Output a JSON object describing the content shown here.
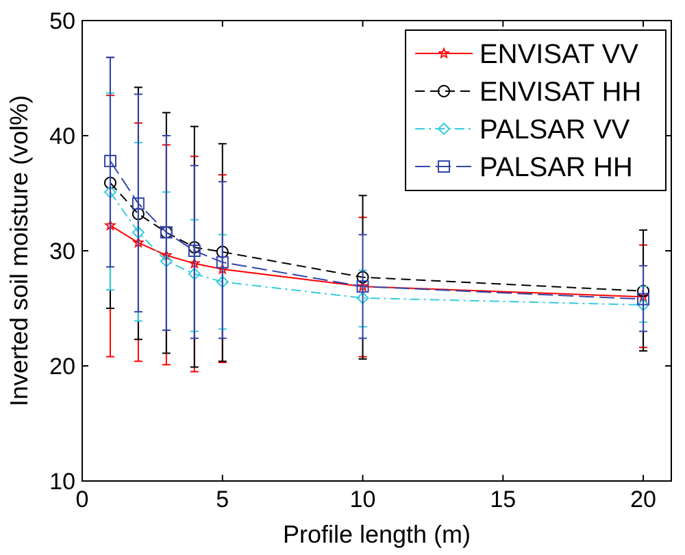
{
  "chart_data": {
    "type": "line",
    "title": "",
    "xlabel": "Profile length (m)",
    "ylabel": "Inverted soil moisture (vol%)",
    "xlim": [
      0,
      21
    ],
    "ylim": [
      10,
      50
    ],
    "xticks": [
      0,
      5,
      10,
      15,
      20
    ],
    "yticks": [
      10,
      20,
      30,
      40,
      50
    ],
    "xtick_labels": [
      "0",
      "5",
      "10",
      "15",
      "20"
    ],
    "ytick_labels": [
      "10",
      "20",
      "30",
      "40",
      "50"
    ],
    "grid": false,
    "legend_position": "top-right",
    "x": [
      1,
      2,
      3,
      4,
      5,
      10,
      20
    ],
    "series": [
      {
        "name": "ENVISAT VV",
        "color": "#ff0000",
        "marker": "star",
        "dash": "solid",
        "values": [
          32.2,
          30.7,
          29.6,
          28.9,
          28.4,
          26.9,
          26.0
        ],
        "err_low": [
          20.8,
          20.4,
          20.1,
          19.5,
          20.3,
          20.8,
          21.6
        ],
        "err_high": [
          43.5,
          41.1,
          39.2,
          38.2,
          36.6,
          32.9,
          30.5
        ]
      },
      {
        "name": "ENVISAT HH",
        "color": "#000000",
        "marker": "circle",
        "dash": "dashed",
        "values": [
          35.9,
          33.2,
          31.6,
          30.3,
          29.9,
          27.7,
          26.5
        ],
        "err_low": [
          25.0,
          22.3,
          21.1,
          19.9,
          20.4,
          20.6,
          21.3
        ],
        "err_high": [
          46.8,
          44.2,
          42.0,
          40.8,
          39.3,
          34.8,
          31.8
        ]
      },
      {
        "name": "PALSAR VV",
        "color": "#33ccdd",
        "marker": "diamond",
        "dash": "dashdot",
        "values": [
          35.1,
          31.6,
          29.1,
          28.0,
          27.3,
          25.9,
          25.3
        ],
        "err_low": [
          26.6,
          23.9,
          23.1,
          23.0,
          23.2,
          23.4,
          23.8
        ],
        "err_high": [
          43.7,
          39.4,
          35.1,
          32.7,
          31.4,
          28.3,
          26.9
        ]
      },
      {
        "name": "PALSAR HH",
        "color": "#3344aa",
        "marker": "square",
        "dash": "longdash",
        "values": [
          37.8,
          34.1,
          31.6,
          30.0,
          29.0,
          26.9,
          25.8
        ],
        "err_low": [
          28.6,
          24.7,
          23.1,
          22.4,
          22.4,
          22.4,
          23.0
        ],
        "err_high": [
          46.8,
          43.6,
          40.0,
          37.4,
          36.0,
          31.4,
          28.7
        ]
      }
    ]
  }
}
